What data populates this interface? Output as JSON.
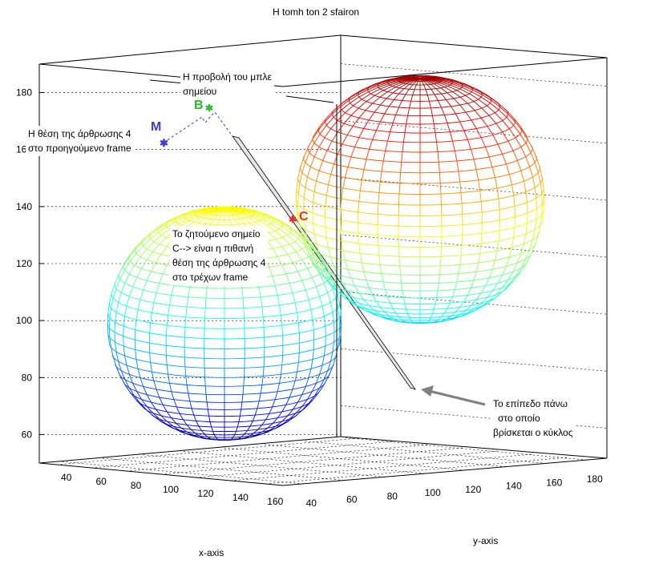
{
  "chart_data": {
    "type": "3d-surface",
    "title": "H tomh ton 2 sfairon",
    "xlabel": "x-axis",
    "ylabel": "y-axis",
    "zlabel": "",
    "x_ticks": [
      "40",
      "60",
      "80",
      "100",
      "120",
      "140",
      "160"
    ],
    "y_ticks": [
      "40",
      "60",
      "80",
      "100",
      "120",
      "140",
      "160",
      "180"
    ],
    "z_ticks": [
      "60",
      "80",
      "100",
      "120",
      "140",
      "160",
      "180"
    ],
    "zlim": [
      50,
      190
    ],
    "grid": true,
    "colormap": "jet",
    "colors": {
      "point_M": "#3b3bd6",
      "point_B": "#2db82d",
      "point_C": "#e03030",
      "plane": "#e6e6e6",
      "arrow": "#808080"
    },
    "spheres": [
      {
        "name": "",
        "position": "front-left",
        "z_bottom": 58,
        "z_top": 140
      },
      {
        "name": "",
        "position": "back-right",
        "z_bottom": 99,
        "z_top": 186
      }
    ],
    "points": [
      {
        "label": "M",
        "marker": "*"
      },
      {
        "label": "B",
        "marker": "*"
      },
      {
        "label": "C",
        "marker": "*"
      }
    ],
    "annotations": [
      "Η προβολή του μπλε σημείου",
      "Η θέση της άρθρωσης 4 στο προηγούμενο frame",
      "Το ζητούμενο σημείο C--> είναι η πιθανή θέση της άρθρωσης 4 στο τρέχων frame",
      "Το επίπεδο πάνω στο οποίο βρίσκεται ο κύκλος"
    ]
  },
  "text": {
    "title": "H tomh ton 2 sfairon",
    "xlabel": "x-axis",
    "ylabel": "y-axis",
    "ann_proj_1": "Η προβολή του μπλε",
    "ann_proj_2": "σημείου",
    "ann_prev_1": "Η θέση της άρθρωσης 4",
    "ann_prev_2": "στο προηγούμενο frame",
    "ann_c_1": "Το ζητούμενο σημείο",
    "ann_c_2": "C--> είναι η πιθανή",
    "ann_c_3": "θέση της άρθρωσης 4",
    "ann_c_4": "στο τρέχων frame",
    "ann_plane_1": "Το επίπεδο πάνω",
    "ann_plane_2": "στο οποίο",
    "ann_plane_3": "βρίσκεται ο κύκλος",
    "pt_M": "M",
    "pt_B": "B",
    "pt_C": "C"
  }
}
